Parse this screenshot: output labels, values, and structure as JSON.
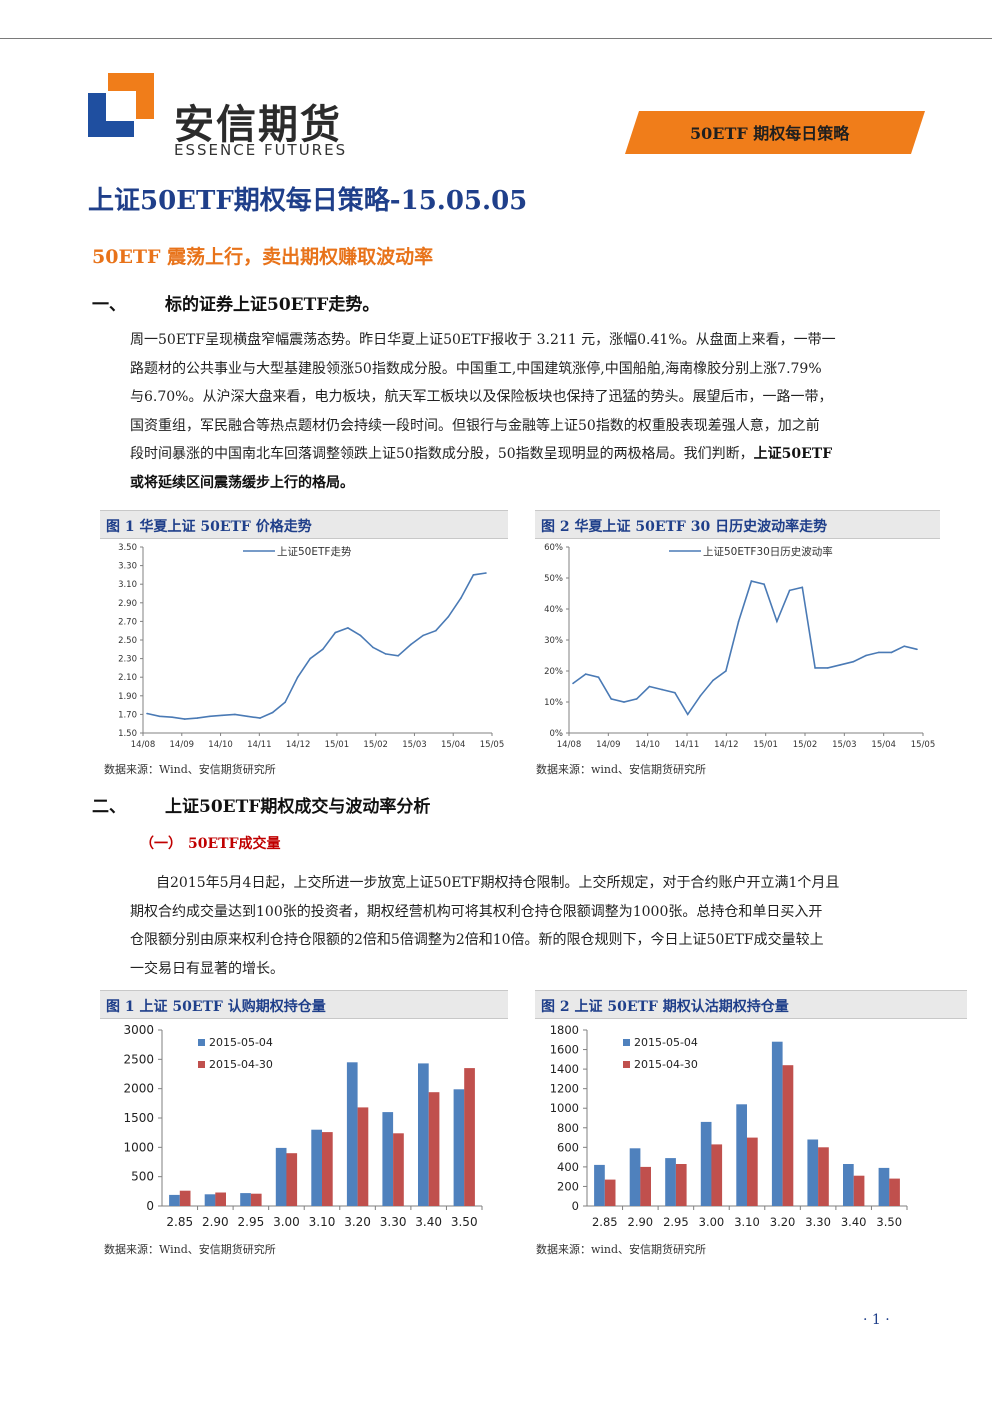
{
  "header": {
    "logo_name": "安信期货",
    "logo_en": "ESSENCE FUTURES",
    "banner": "50ETF 期权每日策略"
  },
  "doc_title": "上证50ETF期权每日策略-15.05.05",
  "subhead": "50ETF 震荡上行，卖出期权赚取波动率",
  "section1": {
    "num": "一、",
    "title": "标的证券上证50ETF走势。",
    "para_lines": [
      "周一50ETF呈现横盘窄幅震荡态势。昨日华夏上证50ETF报收于  3.211  元，涨幅0.41%。从盘面上来看，一带一",
      "路题材的公共事业与大型基建股领涨50指数成分股。中国重工,中国建筑涨停,中国船舶,海南橡胶分别上涨7.79%",
      "与6.70%。从沪深大盘来看，电力板块，航天军工板块以及保险板块也保持了迅猛的势头。展望后市，一路一带，",
      "国资重组，军民融合等热点题材仍会持续一段时间。但银行与金融等上证50指数的权重股表现差强人意，加之前",
      "段时间暴涨的中国南北车回落调整领跌上证50指数成分股，50指数呈现明显的两极格局。我们判断，"
    ],
    "para_bold_tail": "上证50ETF",
    "para_bold_line": "或将延续区间震荡缓步上行的格局。"
  },
  "fig1": {
    "title": "图 1 华夏上证 50ETF 价格走势",
    "source": "数据来源：Wind、安信期货研究所"
  },
  "fig2": {
    "title": "图 2 华夏上证 50ETF 30 日历史波动率走势",
    "source": "数据来源：wind、安信期货研究所"
  },
  "section2": {
    "num": "二、",
    "title": "上证50ETF期权成交与波动率分析",
    "sub_num": "（一）",
    "sub_title": "50ETF成交量",
    "para_lines": [
      "自2015年5月4日起，上交所进一步放宽上证50ETF期权持仓限制。上交所规定，对于合约账户开立满1个月且",
      "期权合约成交量达到100张的投资者，期权经营机构可将其权利仓持仓限额调整为1000张。总持仓和单日买入开",
      "仓限额分别由原来权利仓持仓限额的2倍和5倍调整为2倍和10倍。新的限仓规则下，今日上证50ETF成交量较上",
      "一交易日有显著的增长。"
    ]
  },
  "fig3": {
    "title": "图 1 上证 50ETF 认购期权持仓量",
    "source": "数据来源：Wind、安信期货研究所"
  },
  "fig4": {
    "title": "图 2 上证 50ETF 期权认沽期权持仓量",
    "source": "数据来源：wind、安信期货研究所"
  },
  "page_number": "· 1 ·",
  "colors": {
    "navy": "#1f3f8a",
    "orange": "#f07d1a",
    "blue_bar": "#4f81bd",
    "red_bar": "#c0504d",
    "line": "#4a7ab5"
  },
  "chart_data": [
    {
      "type": "line",
      "title": "",
      "series": [
        {
          "name": "上证50ETF走势",
          "x": [
            "14/08",
            "14/08",
            "14/08",
            "14/09",
            "14/09",
            "14/09",
            "14/10",
            "14/10",
            "14/10",
            "14/11",
            "14/11",
            "14/11",
            "14/12",
            "14/12",
            "14/12",
            "15/01",
            "15/01",
            "15/01",
            "15/02",
            "15/02",
            "15/02",
            "15/03",
            "15/03",
            "15/03",
            "15/04",
            "15/04",
            "15/04",
            "15/05"
          ],
          "values": [
            1.71,
            1.68,
            1.67,
            1.65,
            1.66,
            1.68,
            1.69,
            1.7,
            1.68,
            1.66,
            1.72,
            1.83,
            2.1,
            2.3,
            2.4,
            2.58,
            2.63,
            2.55,
            2.42,
            2.35,
            2.33,
            2.45,
            2.55,
            2.6,
            2.75,
            2.95,
            3.2,
            3.22
          ]
        }
      ],
      "x_ticks": [
        "14/08",
        "14/09",
        "14/10",
        "14/11",
        "14/12",
        "15/01",
        "15/02",
        "15/03",
        "15/04",
        "15/05"
      ],
      "y_ticks": [
        "1.50",
        "1.70",
        "1.90",
        "2.10",
        "2.30",
        "2.50",
        "2.70",
        "2.90",
        "3.10",
        "3.30",
        "3.50"
      ],
      "ylim": [
        1.5,
        3.5
      ],
      "grid": false,
      "legend": "top-left"
    },
    {
      "type": "line",
      "title": "",
      "series": [
        {
          "name": "上证50ETF30日历史波动率",
          "x": [
            "14/08",
            "14/08",
            "14/08",
            "14/09",
            "14/09",
            "14/09",
            "14/10",
            "14/10",
            "14/10",
            "14/11",
            "14/11",
            "14/11",
            "14/12",
            "14/12",
            "14/12",
            "15/01",
            "15/01",
            "15/01",
            "15/02",
            "15/02",
            "15/02",
            "15/03",
            "15/03",
            "15/03",
            "15/04",
            "15/04",
            "15/04",
            "15/05"
          ],
          "values": [
            16,
            19,
            18,
            11,
            10,
            11,
            15,
            14,
            13,
            6,
            12,
            17,
            20,
            36,
            49,
            48,
            36,
            46,
            47,
            21,
            21,
            22,
            23,
            25,
            26,
            26,
            28,
            27
          ]
        }
      ],
      "x_ticks": [
        "14/08",
        "14/09",
        "14/10",
        "14/11",
        "14/12",
        "15/01",
        "15/02",
        "15/03",
        "15/04",
        "15/05"
      ],
      "y_ticks": [
        "0%",
        "10%",
        "20%",
        "30%",
        "40%",
        "50%",
        "60%"
      ],
      "ylim": [
        0,
        60
      ],
      "grid": false,
      "legend": "top-left"
    },
    {
      "type": "bar",
      "title": "",
      "categories": [
        "2.85",
        "2.90",
        "2.95",
        "3.00",
        "3.10",
        "3.20",
        "3.30",
        "3.40",
        "3.50"
      ],
      "series": [
        {
          "name": "2015-05-04",
          "values": [
            190,
            200,
            220,
            990,
            1300,
            2450,
            1600,
            2430,
            1990
          ]
        },
        {
          "name": "2015-04-30",
          "values": [
            260,
            230,
            210,
            900,
            1260,
            1680,
            1240,
            1940,
            2350
          ]
        }
      ],
      "y_ticks": [
        "0",
        "500",
        "1000",
        "1500",
        "2000",
        "2500",
        "3000"
      ],
      "ylim": [
        0,
        3000
      ],
      "legend": "top-left"
    },
    {
      "type": "bar",
      "title": "",
      "categories": [
        "2.85",
        "2.90",
        "2.95",
        "3.00",
        "3.10",
        "3.20",
        "3.30",
        "3.40",
        "3.50"
      ],
      "series": [
        {
          "name": "2015-05-04",
          "values": [
            420,
            590,
            490,
            860,
            1040,
            1680,
            680,
            430,
            390
          ]
        },
        {
          "name": "2015-04-30",
          "values": [
            270,
            400,
            430,
            630,
            700,
            1440,
            600,
            310,
            280
          ]
        }
      ],
      "y_ticks": [
        "0",
        "200",
        "400",
        "600",
        "800",
        "1000",
        "1200",
        "1400",
        "1600",
        "1800"
      ],
      "ylim": [
        0,
        1800
      ],
      "legend": "top-left"
    }
  ]
}
